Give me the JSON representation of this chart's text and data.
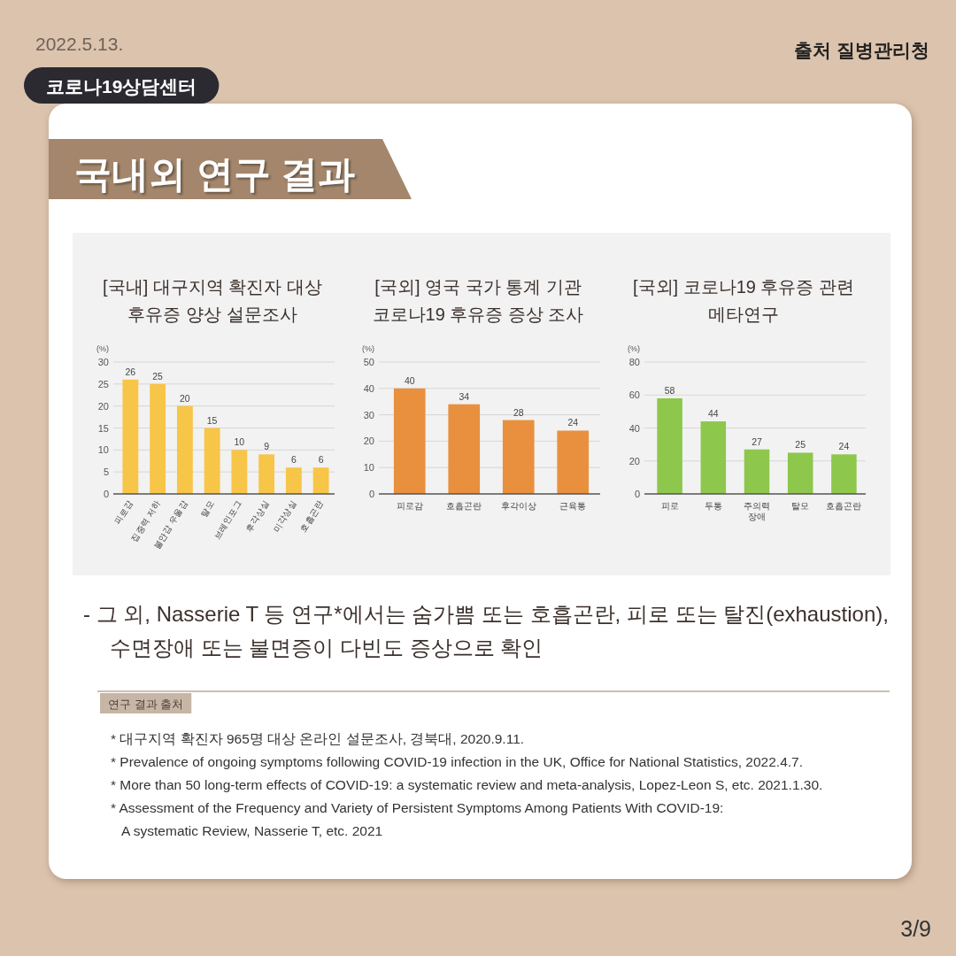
{
  "chart_data": [
    {
      "type": "other",
      "title": "국내외 연구 결과",
      "annotations": [
        "2022.5.13.",
        "코로나19상담센터",
        "출처 질병관리청"
      ]
    },
    {
      "type": "bar",
      "title": "[국내] 대구지역 확진자 대상\n후유증 양상 설문조사",
      "ylabel": "(%)",
      "categories": [
        "피로감",
        "집중력 저하",
        "불안감 우울감",
        "탈모",
        "브레인포그",
        "후각상실",
        "미각상실",
        "호흡곤란"
      ],
      "values": [
        26,
        25,
        20,
        15,
        10,
        9,
        6,
        6
      ],
      "color": "#f7c547",
      "ylim": [
        0,
        30
      ],
      "yticks": [
        0,
        5,
        10,
        15,
        20,
        25,
        30
      ],
      "grid": "y",
      "data_labels": true
    },
    {
      "type": "bar",
      "title": "[국외] 영국 국가 통계 기관\n코로나19 후유증 증상 조사",
      "ylabel": "(%)",
      "categories": [
        "피로감",
        "호흡곤란",
        "후각이상",
        "근육통"
      ],
      "values": [
        40,
        34,
        28,
        24
      ],
      "color": "#e8903e",
      "ylim": [
        0,
        50
      ],
      "yticks": [
        0,
        10,
        20,
        30,
        40,
        50
      ],
      "grid": "y",
      "data_labels": true
    },
    {
      "type": "bar",
      "title": "[국외] 코로나19 후유증 관련\n메타연구",
      "ylabel": "(%)",
      "categories": [
        "피로",
        "두통",
        "주의력 장애",
        "탈모",
        "호흡곤란"
      ],
      "values": [
        58,
        44,
        27,
        25,
        24
      ],
      "color": "#8dc74c",
      "ylim": [
        0,
        80
      ],
      "yticks": [
        0,
        20,
        40,
        60,
        80
      ],
      "grid": "y",
      "data_labels": true
    },
    {
      "type": "other",
      "annotations": [
        "- 그 외, Nasserie T 등 연구*에서는 숨가쁨 또는 호흡곤란, 피로 또는 탈진(exhaustion),\n수면장애 또는 불면증이 다빈도 증상으로 확인",
        "연구 결과 출처",
        "* 대구지역 확진자 965명 대상 온라인 설문조사, 경북대, 2020.9.11.",
        "* Prevalence of ongoing symptoms following COVID-19 infection in the UK, Office for National Statistics, 2022.4.7.",
        "* More than 50 long-term effects of COVID-19: a systematic review and meta-analysis, Lopez-Leon S, etc. 2021.1.30.",
        "* Assessment of the Frequency and Variety of Persistent Symptoms Among Patients With COVID-19:\nA systematic Review, Nasserie T, etc. 2021",
        "3/9"
      ]
    }
  ]
}
